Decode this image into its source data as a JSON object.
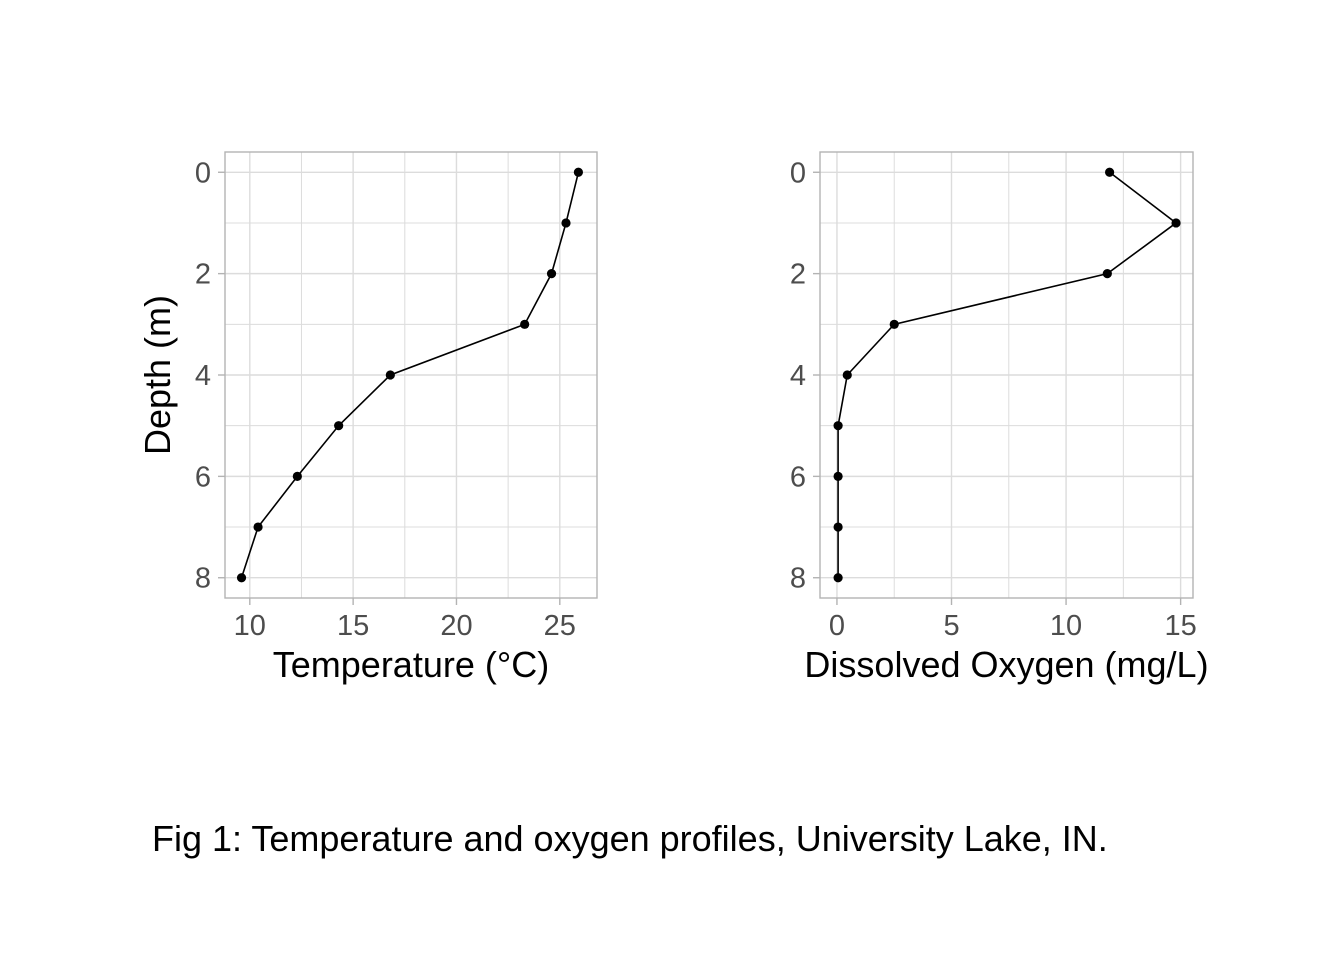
{
  "caption": "Fig 1: Temperature and oxygen profiles, University Lake, IN.",
  "colors": {
    "line": "#000000",
    "point": "#000000",
    "grid": "#dcdcdc",
    "panel_border": "#b3b3b3",
    "tick_text": "#4d4d4d"
  },
  "chart_data": [
    {
      "type": "line",
      "title": "",
      "xlabel": "Temperature (°C)",
      "ylabel": "Depth (m)",
      "y_reversed": true,
      "xlim": [
        8.8,
        26.8
      ],
      "ylim": [
        -0.4,
        8.4
      ],
      "xticks": [
        10,
        15,
        20,
        25
      ],
      "yticks": [
        0,
        2,
        4,
        6,
        8
      ],
      "grid": true,
      "series": [
        {
          "x": [
            25.9,
            25.3,
            24.6,
            23.3,
            16.8,
            14.3,
            12.3,
            10.4,
            9.6
          ],
          "y": [
            0,
            1,
            2,
            3,
            4,
            5,
            6,
            7,
            8
          ]
        }
      ]
    },
    {
      "type": "line",
      "title": "",
      "xlabel": "Dissolved Oxygen (mg/L)",
      "ylabel": "",
      "y_reversed": true,
      "xlim": [
        -0.74,
        15.54
      ],
      "ylim": [
        -0.4,
        8.4
      ],
      "xticks": [
        0,
        5,
        10,
        15
      ],
      "yticks": [
        0,
        2,
        4,
        6,
        8
      ],
      "grid": true,
      "series": [
        {
          "x": [
            11.9,
            14.8,
            11.8,
            2.5,
            0.45,
            0.05,
            0.05,
            0.05,
            0.05
          ],
          "y": [
            0,
            1,
            2,
            3,
            4,
            5,
            6,
            7,
            8
          ]
        }
      ]
    }
  ]
}
